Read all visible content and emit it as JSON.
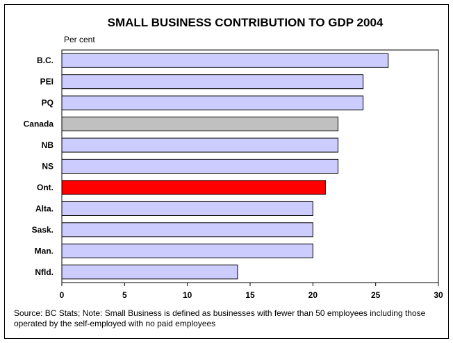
{
  "chart_data": {
    "type": "bar",
    "orientation": "horizontal",
    "title": "SMALL BUSINESS CONTRIBUTION TO GDP 2004",
    "unit_label": "Per cent",
    "categories": [
      "B.C.",
      "PEI",
      "PQ",
      "Canada",
      "NB",
      "NS",
      "Ont.",
      "Alta.",
      "Sask.",
      "Man.",
      "Nfld."
    ],
    "values": [
      26,
      24,
      24,
      22,
      22,
      22,
      21,
      20,
      20,
      20,
      14
    ],
    "bar_colors": [
      "#ccccff",
      "#ccccff",
      "#ccccff",
      "#c0c0c0",
      "#ccccff",
      "#ccccff",
      "#ff0000",
      "#ccccff",
      "#ccccff",
      "#ccccff",
      "#ccccff"
    ],
    "xlim": [
      0,
      30
    ],
    "xticks": [
      0,
      5,
      10,
      15,
      20,
      25,
      30
    ],
    "grid": false,
    "legend": "none"
  },
  "source_note": "Source: BC Stats; Note:  Small Business is defined as businesses with fewer than 50 employees including those operated by the self-employed with no paid employees"
}
